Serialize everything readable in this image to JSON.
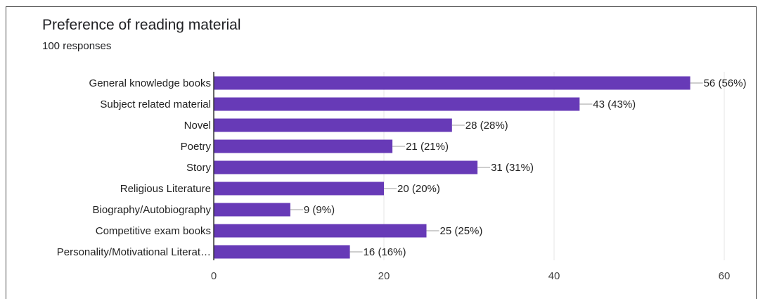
{
  "header": {
    "title": "Preference of reading material",
    "subtitle": "100 responses"
  },
  "colors": {
    "bar": "#673ab7",
    "grid": "#e6e6e6",
    "axis": "#333333"
  },
  "chart_data": {
    "type": "bar",
    "orientation": "horizontal",
    "categories": [
      "General knowledge books",
      "Subject related material",
      "Novel",
      "Poetry",
      "Story",
      "Religious Literature",
      "Biography/Autobiography",
      "Competitive exam books",
      "Personality/Motivational Literat…"
    ],
    "values": [
      56,
      43,
      28,
      21,
      31,
      20,
      9,
      25,
      16
    ],
    "value_labels": [
      "56 (56%)",
      "43 (43%)",
      "28 (28%)",
      "21 (21%)",
      "31 (31%)",
      "20 (20%)",
      "9 (9%)",
      "25 (25%)",
      "16 (16%)"
    ],
    "xlim": [
      0,
      60
    ],
    "xticks": [
      0,
      20,
      40,
      60
    ],
    "grid": true
  }
}
